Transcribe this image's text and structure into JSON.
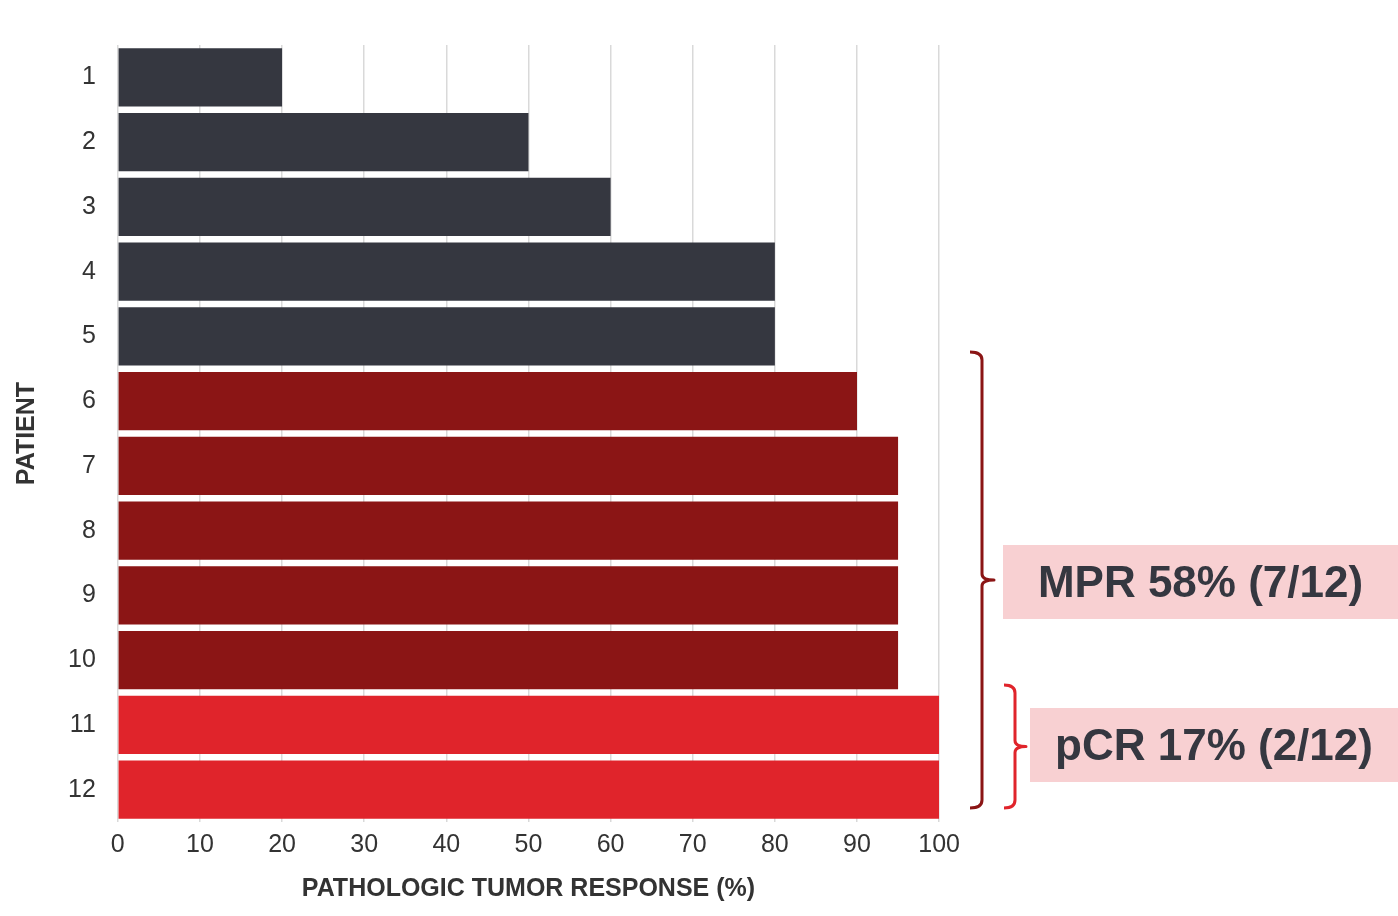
{
  "chart_data": {
    "type": "bar",
    "orientation": "horizontal",
    "xlabel": "PATHOLOGIC TUMOR RESPONSE (%)",
    "ylabel": "PATIENT",
    "categories": [
      "1",
      "2",
      "3",
      "4",
      "5",
      "6",
      "7",
      "8",
      "9",
      "10",
      "11",
      "12"
    ],
    "values": [
      20,
      50,
      60,
      80,
      80,
      90,
      95,
      95,
      95,
      95,
      100,
      100
    ],
    "colors": [
      "#353740",
      "#353740",
      "#353740",
      "#353740",
      "#353740",
      "#8b1515",
      "#8b1515",
      "#8b1515",
      "#8b1515",
      "#8b1515",
      "#e0242b",
      "#e0242b"
    ],
    "xlim": [
      0,
      100
    ],
    "xticks": [
      0,
      10,
      20,
      30,
      40,
      50,
      60,
      70,
      80,
      90,
      100
    ],
    "grid": "x",
    "legend": false,
    "annotations": [
      "MPR 58% (7/12)",
      "pCR 17% (2/12)"
    ]
  }
}
